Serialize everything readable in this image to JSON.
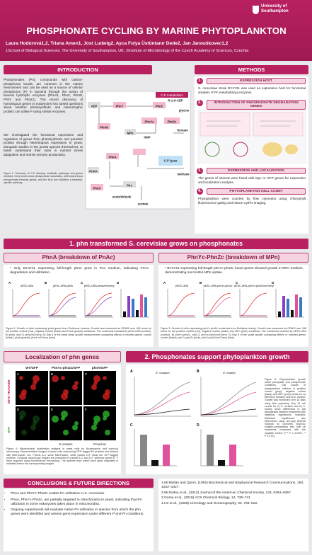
{
  "header": {
    "logo": "University of Southampton",
    "title": "PHOSPHONATE CYCLING BY MARINE PHYTOPLANKTON",
    "authors": "Laura Hodúrová1,2, Triana Amen1, Jost Ludwig2, Ayca Fulya Üstüntanır Dede2, Jan Janouškovec1,2",
    "affiliations": "1School of Biological Sciences, The University of Southampton, UK; 2Institute of Microbiology of the Czech Academy of Sciences, Czechia"
  },
  "introduction": {
    "heading": "INTRODUCTION",
    "paragraphs": [
      "Phosphonates (Pn), compounds with carbon-phosphorus bonds, are common in the marine environment and can be used as a source of cellular phosphorus (P) in bacteria through the action of several hydrolytic enzymes (PhnA1, PhnX, PhnW, PhnY and PhnZ1). The recent discovery of homologous genes in eukaryotes has raised questions about whether photosynthetic and heterotrophic protists can utilise P using similar enzymes.",
      "We investigated the functional expression and regulation of genes from photosynthetic and parasitic protists through heterologous expression in yeast, alongside studies in the protist species themselves, to better understand their roles in nutrient stress adaptation and marine primary productivity."
    ],
    "figure_caption": "Figure 1: Summary of C-P cleaving metabolic pathways and genes involved. Grey boxes show phosphonate substrates, pink boxes show phosphonate-cleaving genes, and the blue box indicates a bacterial-specific pathway.",
    "diagram": {
      "title": "C-P metabolism",
      "nodes": [
        "AEP",
        "PhnY",
        "PhnZ",
        "R-1-H-AEP",
        "glycine",
        "PhnW",
        "MPn",
        "HMP",
        "PhnYc",
        "PhnZc",
        "formate",
        "PhnA",
        "PnAA",
        "PhnX",
        "PAc",
        "acetaldehyde",
        "acetate",
        "C-P lyase",
        "methane"
      ]
    }
  },
  "methods": {
    "heading": "METHODS",
    "steps": [
      {
        "number": "1.",
        "title": "EXPRESSION HOST",
        "text": "S. cerevisiae strain BY4741 was used as expression host for functional analysis of Pn metabolising enzymes."
      },
      {
        "number": "2.",
        "title": "INTRODUCTION OF PHOSPHONATE DEGRADATION GENES"
      },
      {
        "number": "3.",
        "title": "EXPRESSION AND LOCALIZATION",
        "text": "The genes of interest were fused with Myc or GFP genes for expression and localization analysis."
      },
      {
        "number": "4.",
        "title": "PHYTOPLANKTON CELL COUNT",
        "text": "Phytoplankton were counted by flow cytometry using chlorophyll fluorescence gating and Attune CytPix imaging."
      }
    ]
  },
  "section1": {
    "heading": "1. phn transformed S. cerevisiae grows on phosphonates",
    "panels": [
      {
        "heading": "PhnA (breakdown of PnAc)",
        "note": "* Only BY4741 expressing full-length phnA grew in PAc medium, indicating PnAc degradation and utilization.",
        "plots": [
          "pESC-URA",
          "pESC-URA-phnA",
          "pESC-URA-phnA/mCherry"
        ],
        "caption": "Figure 2: Growth of cells expressing phnA genes from Perkinsus marinus. Growth was measured as OD600 over 168 hours for the positive control (red), negative control (black) and PhnA (purple) conditions. The constructs included A) pESC-URA (control), B) phnA, and C) phnA/mCherry. D) Day 6 of the yeast strain growth measurements comparing effects of inserted genes, control (black), phnA (purple), phnA-mCherry (blue)."
      },
      {
        "heading": "PhnYc-PhnZc (breakdown of MPn)",
        "note": "* BY4741 expressing full-length phnYc-phnZc fused genes showed growth in MPn medium, demonstrating successful MPn uptake.",
        "plots": [
          "pESC-URA",
          "pESC-URA-phnYc-phnZc",
          "pESC-URA-phnYc-phnZc/mCherry"
        ],
        "caption": "Figure 3: Growth of cells expressing phnYc-phnZc constructs from Emiliania huxleyi. Growth was measured as OD600 over 168 hours for the positive control (red), negative control (black) and MPn (pink) conditions. The constructs included A) pESC-URA (control), B) phnYc-phnZc, and C) phnYc-phnZc/mCherry. D) Day 6 of the yeast growth comparing effects of inserted genes, control (black), phnYc-phnZc (pink), phnYc-phnZc/mCherry (blue)."
      }
    ]
  },
  "localization": {
    "heading": "Localization of phn genes",
    "columns": [
      "WT/GFP",
      "PhnYc-phnZc/GFP",
      "phnA/GFP"
    ],
    "rows": [
      "MITO TRACKER",
      "GFP"
    ],
    "species": [
      "E.voratum",
      "P.marinus"
    ],
    "caption": "Figure 4: Mitochondrial localization analysis in yeast cells by fluorescence and confocal microscopy. Representative images of yeast cells expressing GFP-tagged Pn proteins and stained with MitoTracker red. Panels A-C show MitoTracker, while panels D-F show the GFP-tagged proteins. Confocal microscopy images are presented in panels A-C and D-F, whereas panels E, F were acquired using fluorescence microscopy. The species from which each gene originates is indicated below the corresponding images."
  },
  "section2": {
    "heading": "2. Phosphonates support phytoplankton growth",
    "plots": [
      "E. voratum",
      "E. huxleyi"
    ],
    "caption": "Figure 5: Phytoplankton growth under phosphate and phosphonate conditions. Cell counts of phytoplankton cultures in positive control (grey), negative control (black) and MPn (pink) media for A) Effrenium voratum, and B) E. huxleyi. Growth was monitored over 18 days using flow cytometry. Day 14 cell counts for C) E. voratum and D) E. huxleyi show differences in cell abundances between treatments with statistical significance indicated. Statistical significance was determined using one-way ANOVA followed by Dunnett's post-hoc multiple-comparisons test, with all treatments compared with the negative control (**** P ≤ 0.0001; ** P ≤ 0.01)."
  },
  "conclusions": {
    "heading": "CONCLUSIONS & FUTURE DIRECTIONS",
    "bullets": [
      "PhnA and PhnYc-PhnZc enable Pn utilization in S. cerevisiae.",
      "PhnA, PhnYc-PhnZc, are partially targeted to mitochondria in yeast, indicating that Pn utilization in some eukaryotes takes place in mitochondria.",
      "Ongoing experiments will evaluate native Pn utilization in species from which the phn genes were identified and assess gene expression under different P and Pn conditions."
    ]
  },
  "references": {
    "items": [
      "1.McMullan and Quinn, (1992) Biochemical and Biophysical Research Communications, 184, 1022–1027.",
      "2.McSorley et al., (2012) Journal of the American Chemical Society, 134, 8364–8367.",
      "3.Gama et al., (2019) ACS Chemical Biology, 14, 735–741.",
      "4.Ho et al., (1989) Limnology and Oceanography, 33, 796–822."
    ]
  }
}
